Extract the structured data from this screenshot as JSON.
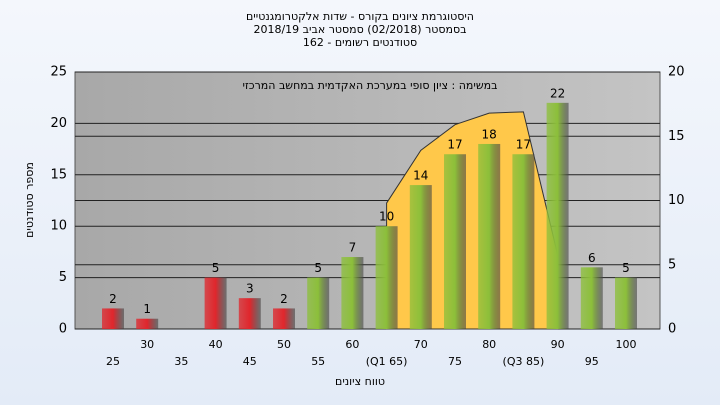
{
  "chart_data": {
    "type": "bar",
    "title": "היסטוגרמת ציונים בקורס - שדות אלקטרומגנטיים",
    "subtitle": "בסמסטר (02/2018) סמסטר אביב 2018/19",
    "subtitle2": "סטודנטים רשומים - 162",
    "annotation": "במשימה : ציון סופי במערכת האקדמית במחשב המרכזי",
    "x_label": "טווח ציונים",
    "y_label": "מספר סטודנטים",
    "categories": [
      "25",
      "30",
      "35",
      "40",
      "45",
      "50",
      "55",
      "60",
      "(Q1 65)",
      "70",
      "75",
      "80",
      "(Q3 85)",
      "90",
      "95",
      "100"
    ],
    "values": [
      2,
      1,
      null,
      5,
      3,
      2,
      5,
      7,
      10,
      14,
      17,
      18,
      17,
      22,
      6,
      5
    ],
    "bar_colors": [
      "#e0262c",
      "#e0262c",
      "#e0262c",
      "#e0262c",
      "#e0262c",
      "#e0262c",
      "#8cbf3a",
      "#8cbf3a",
      "#8cbf3a",
      "#8cbf3a",
      "#8cbf3a",
      "#8cbf3a",
      "#8cbf3a",
      "#8cbf3a",
      "#8cbf3a",
      "#8cbf3a"
    ],
    "ylim": [
      0,
      25
    ],
    "yticks": [
      0,
      5,
      10,
      15,
      20,
      25
    ],
    "y2lim": [
      0,
      20
    ],
    "y2ticks": [
      0,
      5,
      10,
      15,
      20
    ],
    "area": {
      "color": "#ffc84a",
      "axis": "y2",
      "x": [
        65,
        70,
        75,
        80,
        85,
        90
      ],
      "values": [
        9.8,
        13.9,
        15.9,
        16.8,
        16.9,
        5.8
      ]
    },
    "grid": true
  }
}
